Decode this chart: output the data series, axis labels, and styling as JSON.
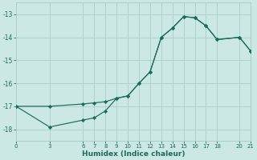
{
  "xlabel": "Humidex (Indice chaleur)",
  "bg_color": "#cce8e4",
  "grid_color": "#aaceca",
  "line_color": "#1a6b5e",
  "upper_x": [
    0,
    3,
    6,
    7,
    8,
    9,
    10,
    11,
    12,
    13,
    14,
    15,
    16,
    17,
    18,
    20,
    21
  ],
  "upper_y": [
    -17.0,
    -17.0,
    -16.9,
    -16.85,
    -16.8,
    -16.65,
    -16.55,
    -16.0,
    -15.5,
    -14.0,
    -13.6,
    -13.1,
    -13.15,
    -13.5,
    -14.1,
    -14.0,
    -14.6
  ],
  "lower_x": [
    0,
    3,
    6,
    7,
    8,
    9,
    10,
    11,
    12,
    13,
    14,
    15,
    16,
    17,
    18,
    20,
    21
  ],
  "lower_y": [
    -17.0,
    -17.9,
    -17.6,
    -17.5,
    -17.2,
    -16.65,
    -16.55,
    -16.0,
    -15.5,
    -14.0,
    -13.6,
    -13.1,
    -13.15,
    -13.5,
    -14.1,
    -14.0,
    -14.6
  ],
  "xlim": [
    0,
    21
  ],
  "ylim": [
    -18.5,
    -12.5
  ],
  "xticks": [
    0,
    3,
    6,
    7,
    8,
    9,
    10,
    11,
    12,
    13,
    14,
    15,
    16,
    17,
    18,
    20,
    21
  ],
  "yticks": [
    -18,
    -17,
    -16,
    -15,
    -14,
    -13
  ]
}
